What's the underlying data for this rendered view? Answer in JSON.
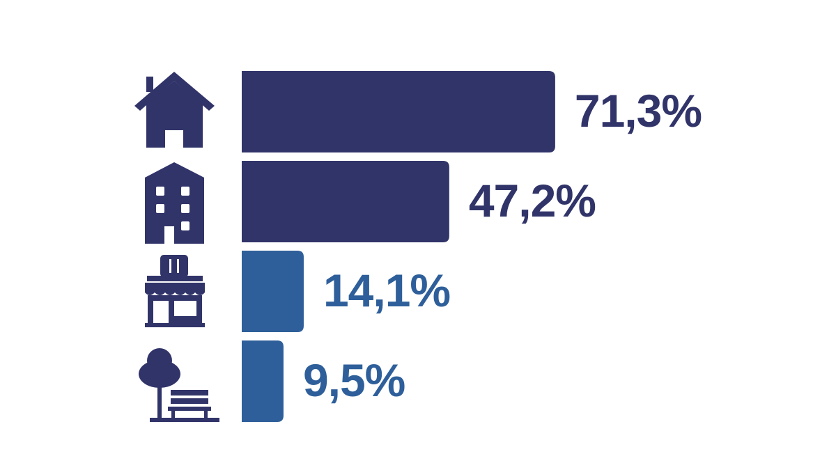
{
  "chart_data": {
    "type": "bar",
    "orientation": "horizontal",
    "categories": [
      null,
      null,
      null,
      null
    ],
    "values": [
      71.3,
      47.2,
      14.1,
      9.5
    ],
    "value_labels": [
      "71,3%",
      "47,2%",
      "14,1%",
      "9,5%"
    ],
    "colors": [
      "#313469",
      "#313469",
      "#2e5f9a",
      "#2e5f9a"
    ]
  }
}
